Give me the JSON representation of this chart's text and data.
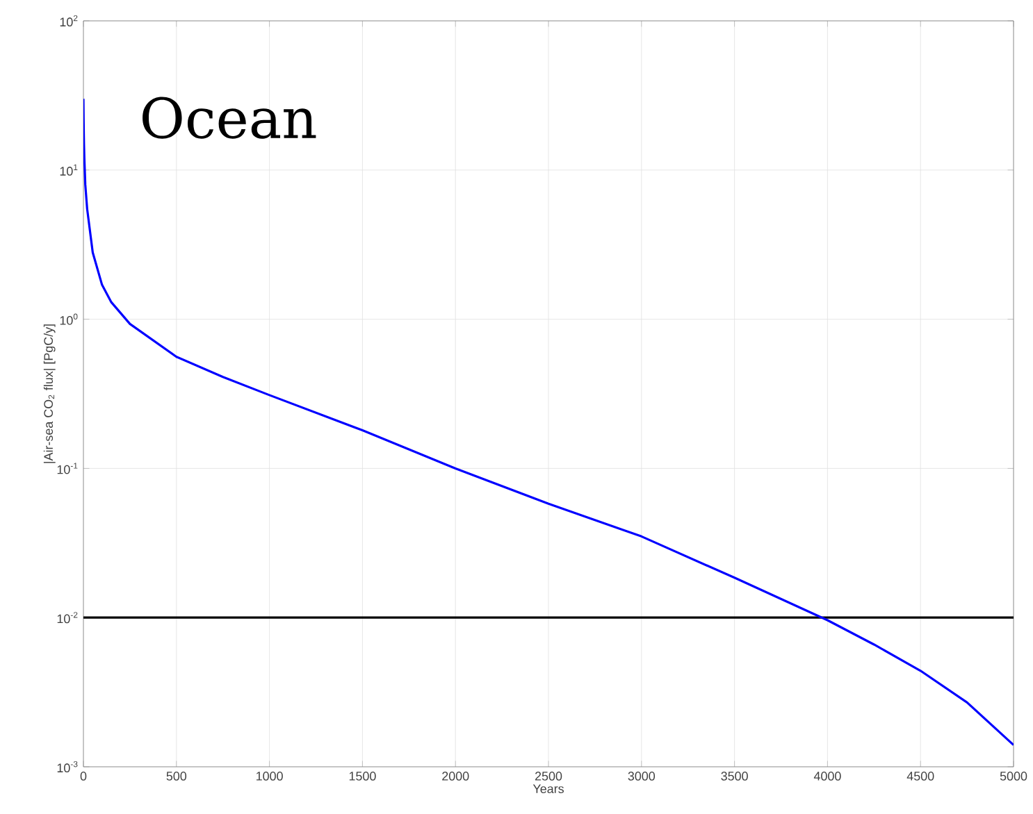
{
  "chart_data": {
    "type": "line",
    "xlabel": "Years",
    "ylabel": "|Air-sea CO$_{2}$ flux| [PgC/y]",
    "annotations": [
      "Ocean"
    ],
    "x": [
      0,
      1,
      2,
      3,
      5,
      10,
      20,
      50,
      100,
      150,
      250,
      500,
      750,
      1000,
      1500,
      2000,
      2500,
      3000,
      3500,
      4000,
      4250,
      4500,
      4750,
      5000
    ],
    "series": [
      {
        "color": "#0000ff",
        "values": [
          30,
          22,
          17.7,
          15,
          12,
          8,
          5.5,
          2.8,
          1.7,
          1.3,
          0.93,
          0.56,
          0.41,
          0.31,
          0.18,
          0.1,
          0.058,
          0.035,
          0.0185,
          0.0096,
          0.0066,
          0.0044,
          0.0027,
          0.0014
        ]
      }
    ],
    "ref_lines": [
      {
        "axis": "y",
        "value": 0.01,
        "color": "#000000"
      }
    ],
    "log": "y",
    "grid": true,
    "xlim": [
      0,
      5000
    ],
    "ylim": [
      0.001,
      100
    ],
    "xticks": [
      0,
      500,
      1000,
      1500,
      2000,
      2500,
      3000,
      3500,
      4000,
      4500,
      5000
    ],
    "yticks": [
      {
        "value": 0.001,
        "label": "10$^{-3}$"
      },
      {
        "value": 0.01,
        "label": "10$^{-2}$"
      },
      {
        "value": 0.1,
        "label": "10$^{-1}$"
      },
      {
        "value": 1,
        "label": "10$^{0}$"
      },
      {
        "value": 10,
        "label": "10$^{1}$"
      },
      {
        "value": 100,
        "label": "10$^{2}$"
      }
    ]
  }
}
